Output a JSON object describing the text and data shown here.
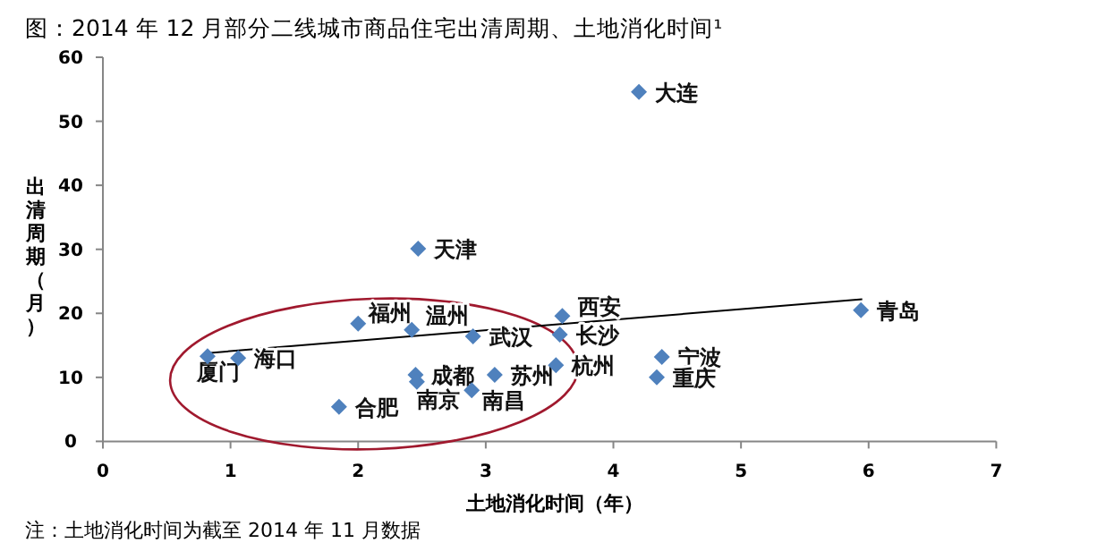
{
  "chart_data": {
    "type": "scatter",
    "title": "图：2014 年 12 月部分二线城市商品住宅出清周期、土地消化时间¹",
    "xlabel": "土地消化时间（年）",
    "ylabel": "出清周期（月）",
    "xlim": [
      0,
      7
    ],
    "xticks": [
      0,
      1,
      2,
      3,
      4,
      5,
      6,
      7
    ],
    "ylim": [
      0,
      60
    ],
    "yticks": [
      0,
      10,
      20,
      30,
      40,
      50,
      60
    ],
    "grid": false,
    "marker": "diamond",
    "series": [
      {
        "type": "scatter",
        "color": "#4f81bd",
        "x": [
          4.2,
          2.47,
          2.0,
          2.42,
          2.9,
          0.82,
          1.06,
          2.45,
          2.46,
          2.89,
          3.07,
          1.85,
          3.6,
          3.58,
          3.55,
          4.38,
          4.34,
          5.94
        ],
        "values": [
          54.6,
          30.1,
          18.4,
          17.4,
          16.4,
          13.3,
          13.0,
          10.4,
          9.3,
          8.0,
          10.4,
          5.4,
          19.6,
          16.7,
          11.9,
          13.2,
          10.0,
          20.5
        ]
      },
      {
        "type": "line",
        "color": "#000000",
        "marker": "none",
        "x": [
          0.82,
          5.95
        ],
        "values": [
          13.8,
          22.2
        ]
      }
    ],
    "annotations": [
      {
        "text": "大连",
        "x": 4.2,
        "y": 54.6
      },
      {
        "text": "天津",
        "x": 2.47,
        "y": 30.1
      },
      {
        "text": "福州",
        "x": 2.0,
        "y": 18.4
      },
      {
        "text": "温州",
        "x": 2.42,
        "y": 17.4
      },
      {
        "text": "武汉",
        "x": 2.9,
        "y": 16.4
      },
      {
        "text": "厦门",
        "x": 0.82,
        "y": 13.3
      },
      {
        "text": "海口",
        "x": 1.06,
        "y": 13.0
      },
      {
        "text": "成都",
        "x": 2.45,
        "y": 10.4
      },
      {
        "text": "南京",
        "x": 2.46,
        "y": 9.3
      },
      {
        "text": "南昌",
        "x": 2.89,
        "y": 8.0
      },
      {
        "text": "苏州",
        "x": 3.07,
        "y": 10.4
      },
      {
        "text": "合肥",
        "x": 1.85,
        "y": 5.4
      },
      {
        "text": "西安",
        "x": 3.6,
        "y": 19.6
      },
      {
        "text": "长沙",
        "x": 3.58,
        "y": 16.7
      },
      {
        "text": "杭州",
        "x": 3.55,
        "y": 11.9
      },
      {
        "text": "宁波",
        "x": 4.38,
        "y": 13.2
      },
      {
        "text": "重庆",
        "x": 4.34,
        "y": 10.0
      },
      {
        "text": "青岛",
        "x": 5.94,
        "y": 20.5
      },
      "注：土地消化时间为截至 2014 年 11 月数据"
    ]
  }
}
